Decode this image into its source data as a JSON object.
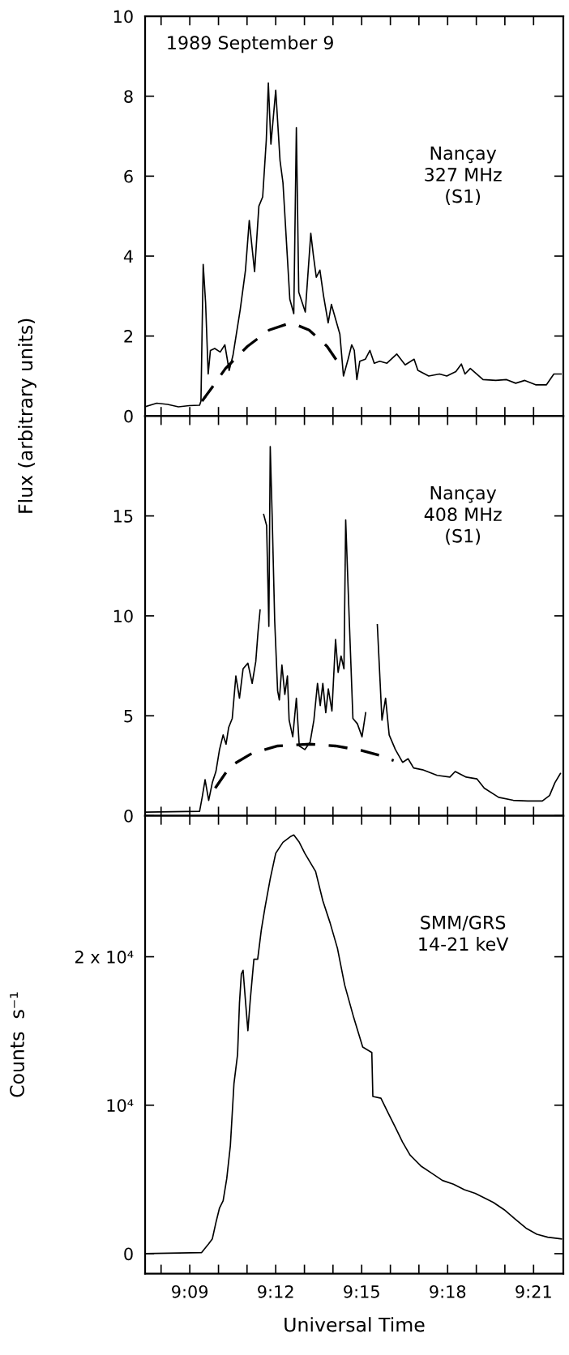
{
  "chart_data": [
    {
      "type": "line",
      "ylabel": "Flux (arbitrary units)",
      "annotations": [
        "1989 September 9",
        "Nançay\n327 MHz\n(S1)"
      ],
      "xlim": [
        9.124,
        9.3673
      ],
      "xticks": [
        {
          "value": 9.1333,
          "label": null
        },
        {
          "value": 9.15,
          "label": null
        },
        {
          "value": 9.1667,
          "label": null
        },
        {
          "value": 9.1833,
          "label": null
        },
        {
          "value": 9.2,
          "label": null
        },
        {
          "value": 9.2167,
          "label": null
        },
        {
          "value": 9.2333,
          "label": null
        },
        {
          "value": 9.25,
          "label": null
        },
        {
          "value": 9.2667,
          "label": null
        },
        {
          "value": 9.2833,
          "label": null
        },
        {
          "value": 9.3,
          "label": null
        },
        {
          "value": 9.3167,
          "label": null
        },
        {
          "value": 9.3333,
          "label": null
        },
        {
          "value": 9.35,
          "label": null
        }
      ],
      "ylim": [
        0,
        10
      ],
      "yticks": [
        0,
        2,
        4,
        6,
        8,
        10
      ],
      "tick_labels": "y",
      "series": [
        {
          "color": "#000000",
          "line_style": "solid",
          "x": [
            9.124,
            9.1308,
            9.1371,
            9.1434,
            9.1497,
            9.1557,
            9.1565,
            9.1578,
            9.1592,
            9.1607,
            9.162,
            9.1645,
            9.1677,
            9.1704,
            9.1729,
            9.1751,
            9.1793,
            9.1824,
            9.1846,
            9.1877,
            9.1902,
            9.1924,
            9.1945,
            9.1957,
            9.1972,
            9.2,
            9.2025,
            9.2042,
            9.2067,
            9.2082,
            9.2105,
            9.212,
            9.2134,
            9.2172,
            9.2204,
            9.2219,
            9.2236,
            9.2257,
            9.2278,
            9.2305,
            9.2324,
            9.2373,
            9.2394,
            9.2421,
            9.2442,
            9.2457,
            9.2472,
            9.2489,
            9.2521,
            9.2548,
            9.2573,
            9.2605,
            9.2647,
            9.2704,
            9.2753,
            9.2805,
            9.2827,
            9.289,
            9.2953,
            9.2995,
            9.3048,
            9.308,
            9.3101,
            9.3132,
            9.3206,
            9.328,
            9.3343,
            9.3396,
            9.3449,
            9.3512,
            9.3575,
            9.3618,
            9.366
          ],
          "values": [
            0.23,
            0.32,
            0.29,
            0.23,
            0.26,
            0.27,
            0.37,
            3.79,
            2.83,
            1.05,
            1.64,
            1.69,
            1.6,
            1.78,
            1.14,
            1.51,
            2.65,
            3.65,
            4.89,
            3.61,
            5.25,
            5.48,
            6.9,
            8.33,
            6.8,
            8.15,
            6.39,
            5.84,
            4.02,
            2.92,
            2.56,
            7.21,
            3.1,
            2.6,
            4.57,
            4.02,
            3.47,
            3.65,
            3.01,
            2.33,
            2.79,
            2.05,
            1.0,
            1.42,
            1.78,
            1.64,
            0.91,
            1.37,
            1.42,
            1.64,
            1.32,
            1.37,
            1.32,
            1.55,
            1.28,
            1.42,
            1.14,
            1.0,
            1.05,
            1.0,
            1.11,
            1.3,
            1.05,
            1.19,
            0.91,
            0.89,
            0.91,
            0.82,
            0.89,
            0.78,
            0.78,
            1.05,
            1.05
          ]
        },
        {
          "color": "#000000",
          "line_style": "dashed",
          "x": [
            9.1571,
            9.1624,
            9.1708,
            9.1835,
            9.1962,
            9.2067,
            9.2109,
            9.2194,
            9.2299,
            9.2394
          ],
          "values": [
            0.37,
            0.68,
            1.19,
            1.74,
            2.15,
            2.3,
            2.3,
            2.15,
            1.74,
            1.14
          ]
        }
      ]
    },
    {
      "type": "line",
      "annotations": [
        "Nançay\n408 MHz\n(S1)"
      ],
      "xlim": [
        9.124,
        9.3673
      ],
      "xticks": [
        {
          "value": 9.1333,
          "label": null
        },
        {
          "value": 9.15,
          "label": null
        },
        {
          "value": 9.1667,
          "label": null
        },
        {
          "value": 9.1833,
          "label": null
        },
        {
          "value": 9.2,
          "label": null
        },
        {
          "value": 9.2167,
          "label": null
        },
        {
          "value": 9.2333,
          "label": null
        },
        {
          "value": 9.25,
          "label": null
        },
        {
          "value": 9.2667,
          "label": null
        },
        {
          "value": 9.2833,
          "label": null
        },
        {
          "value": 9.3,
          "label": null
        },
        {
          "value": 9.3167,
          "label": null
        },
        {
          "value": 9.3333,
          "label": null
        },
        {
          "value": 9.35,
          "label": null
        }
      ],
      "ylim": [
        0,
        20
      ],
      "yticks": [
        0,
        5,
        10,
        15
      ],
      "tick_labels": "y",
      "series": [
        {
          "color": "#000000",
          "line_style": "solid",
          "x": [
            9.1243,
            9.1557,
            9.1572,
            9.1589,
            9.161,
            9.1631,
            9.1652,
            9.1673,
            9.1694,
            9.1711,
            9.1726,
            9.1747,
            9.1768,
            9.1789,
            9.181,
            9.1838,
            9.1863,
            9.1884,
            9.1897,
            9.1909,
            9.1922,
            9.193,
            9.1947,
            9.196,
            9.1968,
            9.1979,
            9.1994,
            9.2011,
            9.2021,
            9.2036,
            9.2053,
            9.2068,
            9.2078,
            9.2099,
            9.212,
            9.2137,
            9.2169,
            9.22,
            9.2222,
            9.2243,
            9.2259,
            9.2274,
            9.2291,
            9.2306,
            9.2327,
            9.2348,
            9.2363,
            9.238,
            9.2397,
            9.2407,
            9.2428,
            9.2449,
            9.2475,
            9.2502,
            9.2523,
            9.2544,
            9.2563,
            9.2591,
            9.2618,
            9.2639,
            9.266,
            9.2696,
            9.2738,
            9.277,
            9.2802,
            9.2854,
            9.2939,
            9.3013,
            9.3044,
            9.3108,
            9.3171,
            9.3213,
            9.3297,
            9.3382,
            9.3466,
            9.3551,
            9.3593,
            9.3624,
            9.3656
          ],
          "values": [
            0.18,
            0.22,
            0.92,
            1.8,
            0.77,
            1.65,
            2.21,
            3.31,
            4.04,
            3.58,
            4.41,
            4.87,
            6.99,
            5.88,
            7.35,
            7.63,
            6.62,
            7.72,
            9.19,
            10.29,
            null,
            15.07,
            14.52,
            9.47,
            18.47,
            15.07,
            9.74,
            6.25,
            5.79,
            7.54,
            6.07,
            6.99,
            4.78,
            3.95,
            5.88,
            3.49,
            3.31,
            3.68,
            4.78,
            6.62,
            5.51,
            6.62,
            5.15,
            6.34,
            5.24,
            8.82,
            7.17,
            7.99,
            7.35,
            14.8,
            9.74,
            4.87,
            4.6,
            3.95,
            5.15,
            null,
            null,
            9.56,
            4.78,
            5.88,
            4.04,
            3.31,
            2.67,
            2.85,
            2.39,
            2.3,
            2.02,
            1.93,
            2.21,
            1.93,
            1.84,
            1.38,
            0.92,
            0.77,
            0.74,
            0.74,
            1.01,
            1.65,
            2.11
          ]
        },
        {
          "color": "#000000",
          "line_style": "dashed",
          "x": [
            9.1648,
            9.1736,
            9.1863,
            9.2011,
            9.22,
            9.2348,
            9.2496,
            9.2601,
            9.2686
          ],
          "values": [
            1.38,
            2.48,
            3.13,
            3.49,
            3.58,
            3.49,
            3.27,
            3.03,
            2.76
          ]
        }
      ]
    },
    {
      "type": "line",
      "xlabel": "Universal Time",
      "ylabel": "Counts  s⁻¹",
      "annotations": [
        "SMM/GRS\n14-21 keV"
      ],
      "xlim": [
        9.124,
        9.3673
      ],
      "xticks": [
        {
          "value": 9.1333,
          "label": null
        },
        {
          "value": 9.15,
          "label": "9:09"
        },
        {
          "value": 9.1667,
          "label": null
        },
        {
          "value": 9.1833,
          "label": null
        },
        {
          "value": 9.2,
          "label": "9:12"
        },
        {
          "value": 9.2167,
          "label": null
        },
        {
          "value": 9.2333,
          "label": null
        },
        {
          "value": 9.25,
          "label": "9:15"
        },
        {
          "value": 9.2667,
          "label": null
        },
        {
          "value": 9.2833,
          "label": null
        },
        {
          "value": 9.3,
          "label": "9:18"
        },
        {
          "value": 9.3167,
          "label": null
        },
        {
          "value": 9.3333,
          "label": null
        },
        {
          "value": 9.35,
          "label": "9:21"
        }
      ],
      "ylim": [
        -1350,
        29500
      ],
      "yticks": [
        0,
        {
          "value": 10000,
          "label": "10⁴"
        },
        {
          "value": 20000,
          "label": "2 x 10⁴"
        }
      ],
      "series": [
        {
          "color": "#000000",
          "line_style": "solid",
          "x": [
            9.1241,
            9.1568,
            9.1589,
            9.161,
            9.1631,
            9.1652,
            9.1673,
            9.1694,
            9.1715,
            9.1736,
            9.1757,
            9.1778,
            9.1789,
            9.18,
            9.181,
            9.1825,
            9.1838,
            9.1852,
            9.1873,
            9.1895,
            9.1916,
            9.1937,
            9.1968,
            9.2,
            9.2042,
            9.2084,
            9.2105,
            9.2137,
            9.2169,
            9.2232,
            9.2274,
            9.2316,
            9.2359,
            9.2401,
            9.2454,
            9.2506,
            9.2559,
            9.2565,
            9.2612,
            9.2654,
            9.2696,
            9.2738,
            9.2781,
            9.2844,
            9.2907,
            9.297,
            9.3034,
            9.3097,
            9.316,
            9.3224,
            9.3266,
            9.3329,
            9.3392,
            9.3456,
            9.3519,
            9.3582,
            9.3662
          ],
          "values": [
            0,
            70,
            370,
            670,
            990,
            2090,
            3080,
            3570,
            5050,
            7270,
            11450,
            13420,
            16870,
            18840,
            19090,
            16870,
            15020,
            17120,
            19830,
            19830,
            21800,
            23280,
            25250,
            26970,
            27710,
            28080,
            28200,
            27710,
            26970,
            25740,
            23770,
            22290,
            20570,
            18100,
            15890,
            13920,
            13550,
            10590,
            10470,
            9480,
            8500,
            7510,
            6650,
            5910,
            5420,
            4930,
            4680,
            4310,
            4060,
            3690,
            3450,
            2960,
            2340,
            1720,
            1310,
            1110,
            990
          ]
        }
      ]
    }
  ]
}
